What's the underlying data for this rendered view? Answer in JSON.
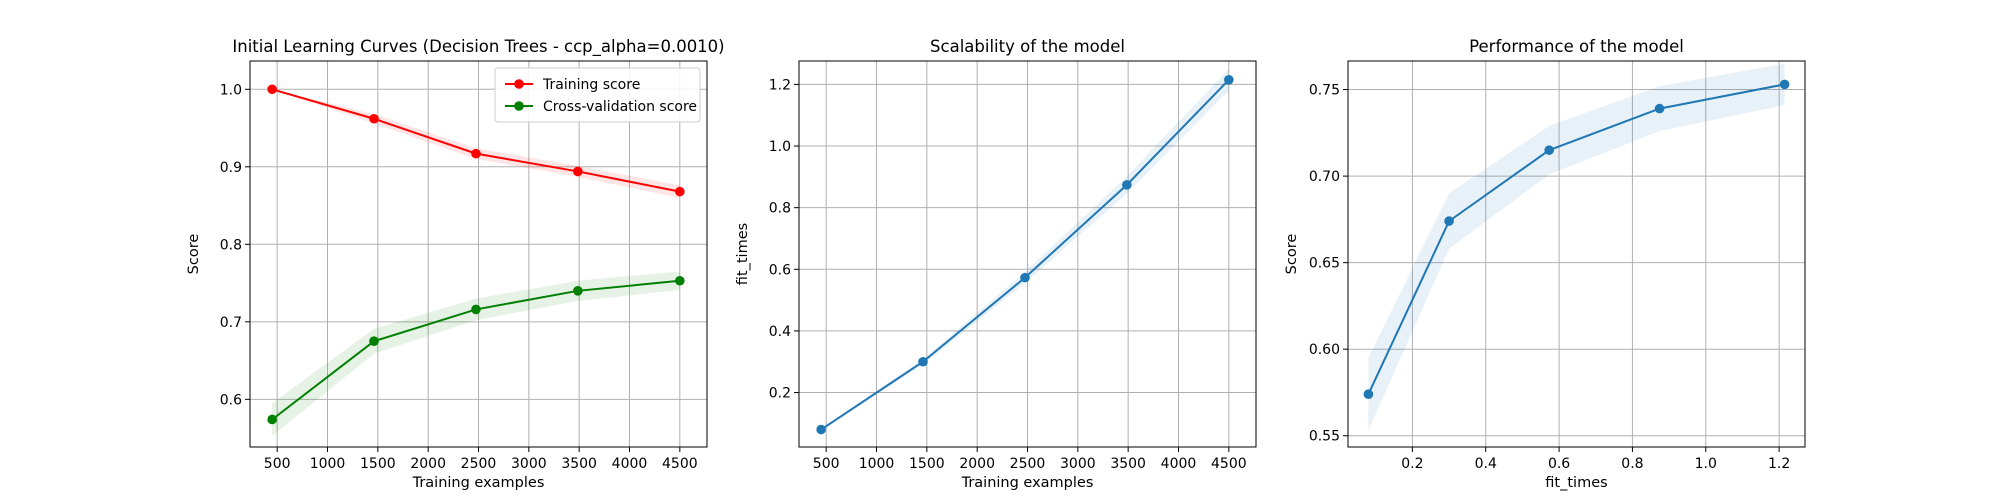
{
  "chart_data": [
    {
      "type": "line",
      "title": "Initial Learning Curves (Decision Trees - ccp_alpha=0.0010)",
      "xlabel": "Training examples",
      "ylabel": "Score",
      "xlim": [
        230,
        4770
      ],
      "ylim": [
        0.5385,
        1.0365
      ],
      "xticks": [
        500,
        1000,
        1500,
        2000,
        2500,
        3000,
        3500,
        4000,
        4500
      ],
      "yticks": [
        0.6,
        0.7,
        0.8,
        0.9,
        1.0
      ],
      "ytick_labels": [
        "0.6",
        "0.7",
        "0.8",
        "0.9",
        "1.0"
      ],
      "grid": true,
      "legend_position": "top-right",
      "x": [
        450,
        1462,
        2475,
        3487,
        4500
      ],
      "series": [
        {
          "name": "Training score",
          "color": "#ff0000",
          "values": [
            1.0,
            0.962,
            0.917,
            0.894,
            0.868
          ],
          "band": [
            0.0,
            0.006,
            0.007,
            0.007,
            0.008
          ]
        },
        {
          "name": "Cross-validation score",
          "color": "#008000",
          "values": [
            0.574,
            0.675,
            0.716,
            0.74,
            0.753
          ],
          "band": [
            0.021,
            0.016,
            0.014,
            0.013,
            0.012
          ]
        }
      ]
    },
    {
      "type": "line",
      "title": "Scalability of the model",
      "xlabel": "Training examples",
      "ylabel": "fit_times",
      "xlim": [
        230,
        4770
      ],
      "ylim": [
        0.0233,
        1.276
      ],
      "xticks": [
        500,
        1000,
        1500,
        2000,
        2500,
        3000,
        3500,
        4000,
        4500
      ],
      "yticks": [
        0.2,
        0.4,
        0.6,
        0.8,
        1.0,
        1.2
      ],
      "ytick_labels": [
        "0.2",
        "0.4",
        "0.6",
        "0.8",
        "1.0",
        "1.2"
      ],
      "grid": true,
      "x": [
        450,
        1462,
        2475,
        3487,
        4500
      ],
      "series": [
        {
          "color": "#1f77b4",
          "values": [
            0.08,
            0.3,
            0.573,
            0.874,
            1.215
          ],
          "band": [
            0.004,
            0.009,
            0.018,
            0.028,
            0.035
          ]
        }
      ]
    },
    {
      "type": "line",
      "title": "Performance of the model",
      "xlabel": "fit_times",
      "ylabel": "Score",
      "xlim": [
        0.0244,
        1.2706
      ],
      "ylim": [
        0.5435,
        0.7665
      ],
      "xticks": [
        0.2,
        0.4,
        0.6,
        0.8,
        1.0,
        1.2
      ],
      "xtick_labels": [
        "0.2",
        "0.4",
        "0.6",
        "0.8",
        "1.0",
        "1.2"
      ],
      "yticks": [
        0.55,
        0.6,
        0.65,
        0.7,
        0.75
      ],
      "ytick_labels": [
        "0.55",
        "0.60",
        "0.65",
        "0.70",
        "0.75"
      ],
      "grid": true,
      "x": [
        0.08,
        0.3,
        0.573,
        0.874,
        1.215
      ],
      "series": [
        {
          "color": "#1f77b4",
          "values": [
            0.574,
            0.674,
            0.715,
            0.739,
            0.753
          ],
          "band": [
            0.021,
            0.016,
            0.014,
            0.013,
            0.012
          ]
        }
      ]
    }
  ]
}
